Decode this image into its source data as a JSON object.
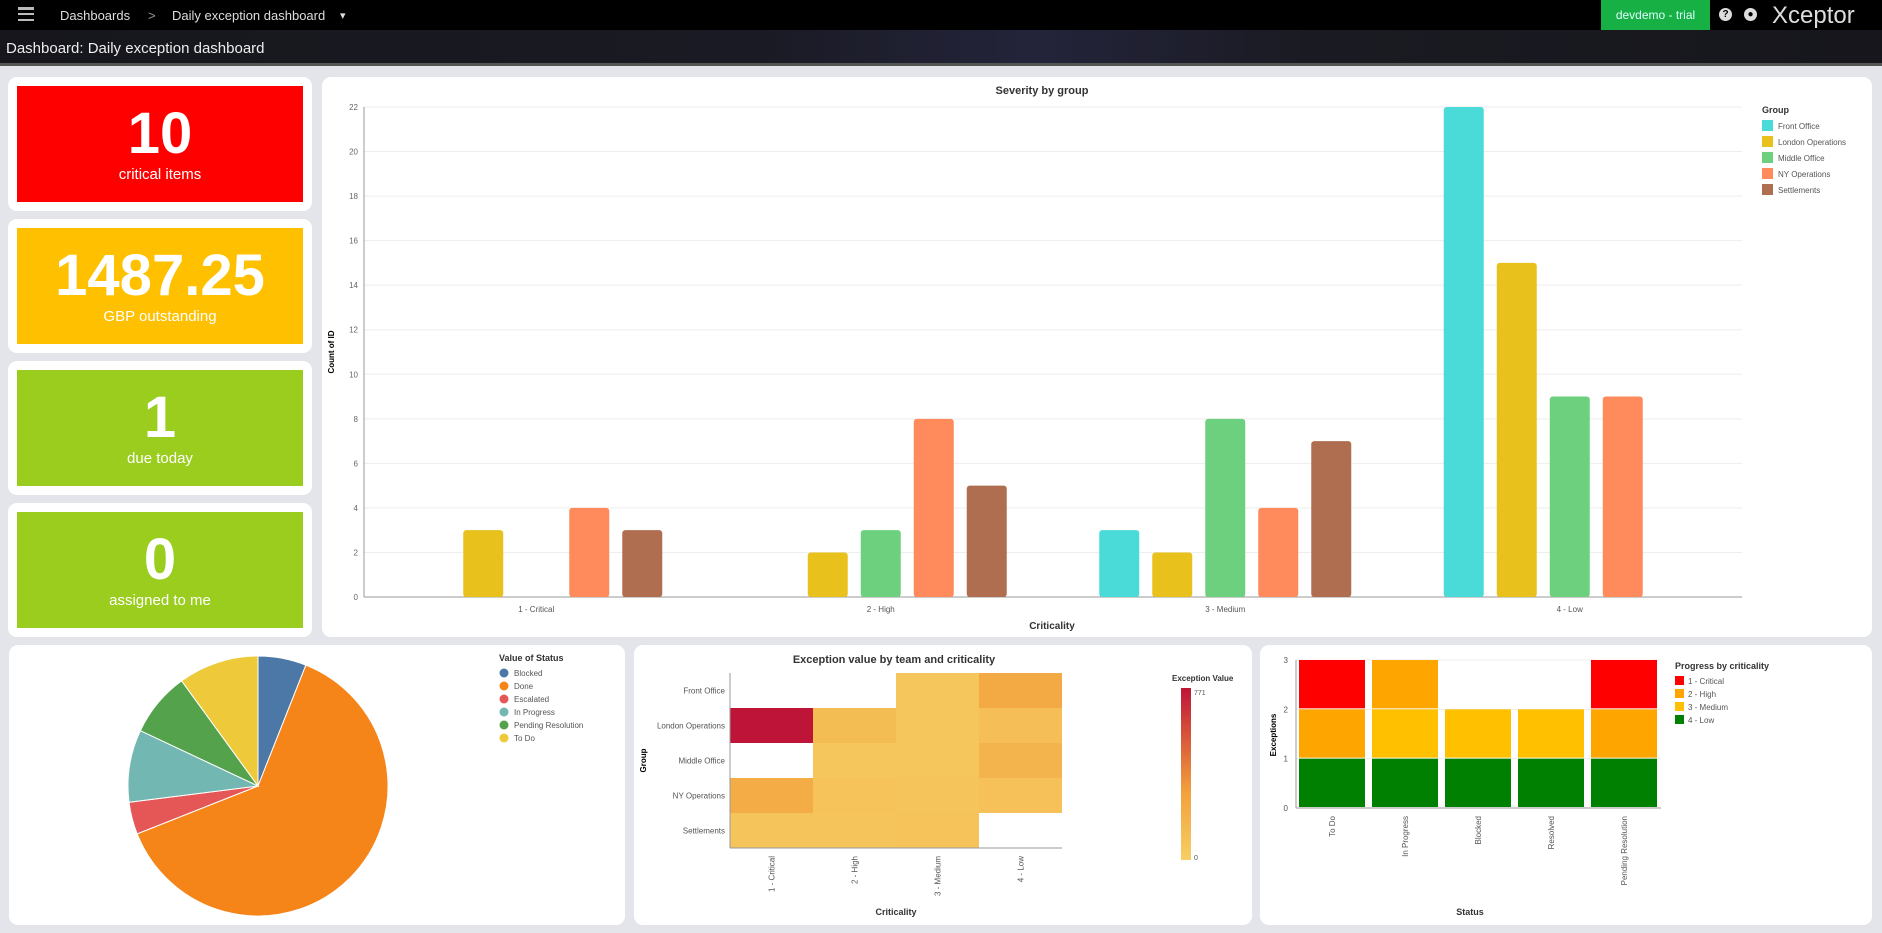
{
  "topbar": {
    "menu_icon": "hamburger-icon",
    "breadcrumb_root": "Dashboards",
    "separator": ">",
    "breadcrumb_current": "Daily exception dashboard",
    "dropdown_icon": "▾",
    "environment": "devdemo - trial",
    "help_icon": "?",
    "user_icon": "●",
    "brand": "Xceptor"
  },
  "subheader": {
    "title": "Dashboard: Daily exception dashboard"
  },
  "kpis": [
    {
      "value": "10",
      "label": "critical items",
      "color": "#ff0000"
    },
    {
      "value": "1487.25",
      "label": "GBP outstanding",
      "color": "#ffc000"
    },
    {
      "value": "1",
      "label": "due today",
      "color": "#9acd1e"
    },
    {
      "value": "0",
      "label": "assigned to me",
      "color": "#9acd1e"
    }
  ],
  "chart_data": [
    {
      "type": "bar",
      "title": "Severity by group",
      "xlabel": "Criticality",
      "ylabel": "Count of ID",
      "ylim": [
        0,
        22
      ],
      "yticks": [
        0,
        2,
        4,
        6,
        8,
        10,
        12,
        14,
        16,
        18,
        20,
        22
      ],
      "grid": true,
      "legend_title": "Group",
      "legend_position": "top-right",
      "categories": [
        "1 - Critical",
        "2 - High",
        "3 - Medium",
        "4 - Low"
      ],
      "series": [
        {
          "name": "Front Office",
          "color": "#4adbd8",
          "values": [
            0,
            0,
            3,
            22
          ]
        },
        {
          "name": "London Operations",
          "color": "#e8c11c",
          "values": [
            3,
            2,
            2,
            15
          ]
        },
        {
          "name": "Middle Office",
          "color": "#6dd07e",
          "values": [
            0,
            3,
            8,
            9
          ]
        },
        {
          "name": "NY Operations",
          "color": "#ff8a5c",
          "values": [
            4,
            8,
            4,
            9
          ]
        },
        {
          "name": "Settlements",
          "color": "#b06e50",
          "values": [
            3,
            5,
            7,
            0
          ]
        }
      ]
    },
    {
      "type": "pie",
      "legend_title": "Value of Status",
      "legend_position": "right",
      "slices": [
        {
          "label": "Blocked",
          "value": 6,
          "color": "#4c78a8"
        },
        {
          "label": "Done",
          "value": 63,
          "color": "#f58518"
        },
        {
          "label": "Escalated",
          "value": 4,
          "color": "#e45756"
        },
        {
          "label": "In Progress",
          "value": 9,
          "color": "#72b7b2"
        },
        {
          "label": "Pending Resolution",
          "value": 8,
          "color": "#54a24b"
        },
        {
          "label": "To Do",
          "value": 10,
          "color": "#eeca3b"
        }
      ]
    },
    {
      "type": "heatmap",
      "title": "Exception value by team and criticality",
      "xlabel": "Criticality",
      "ylabel": "Group",
      "legend_title": "Exception Value",
      "range": [
        0,
        771
      ],
      "range_labels": [
        "0",
        "771"
      ],
      "x": [
        "1 - Critical",
        "2 - High",
        "3 - Medium",
        "4 - Low"
      ],
      "y": [
        "Front Office",
        "London Operations",
        "Middle Office",
        "NY Operations",
        "Settlements"
      ],
      "values": [
        [
          null,
          null,
          60,
          250
        ],
        [
          771,
          120,
          60,
          110
        ],
        [
          null,
          60,
          60,
          180
        ],
        [
          230,
          80,
          70,
          90
        ],
        [
          70,
          70,
          80,
          null
        ]
      ]
    },
    {
      "type": "bar",
      "stacked": true,
      "xlabel": "Status",
      "ylabel": "Exceptions",
      "ylim": [
        0,
        3
      ],
      "yticks": [
        0,
        1,
        2,
        3
      ],
      "legend_title": "Progress by criticality",
      "legend_position": "top-right",
      "categories": [
        "To Do",
        "In Progress",
        "Blocked",
        "Resolved",
        "Pending Resolution"
      ],
      "series": [
        {
          "name": "4 - Low",
          "color": "#008000",
          "values": [
            1,
            1,
            1,
            1,
            1
          ]
        },
        {
          "name": "3 - Medium",
          "color": "#ffc000",
          "values": [
            0,
            1,
            1,
            1,
            0
          ]
        },
        {
          "name": "2 - High",
          "color": "#ffa500",
          "values": [
            1,
            1,
            0,
            0,
            1
          ]
        },
        {
          "name": "1 - Critical",
          "color": "#ff0000",
          "values": [
            1,
            0,
            0,
            0,
            1
          ]
        }
      ]
    }
  ]
}
